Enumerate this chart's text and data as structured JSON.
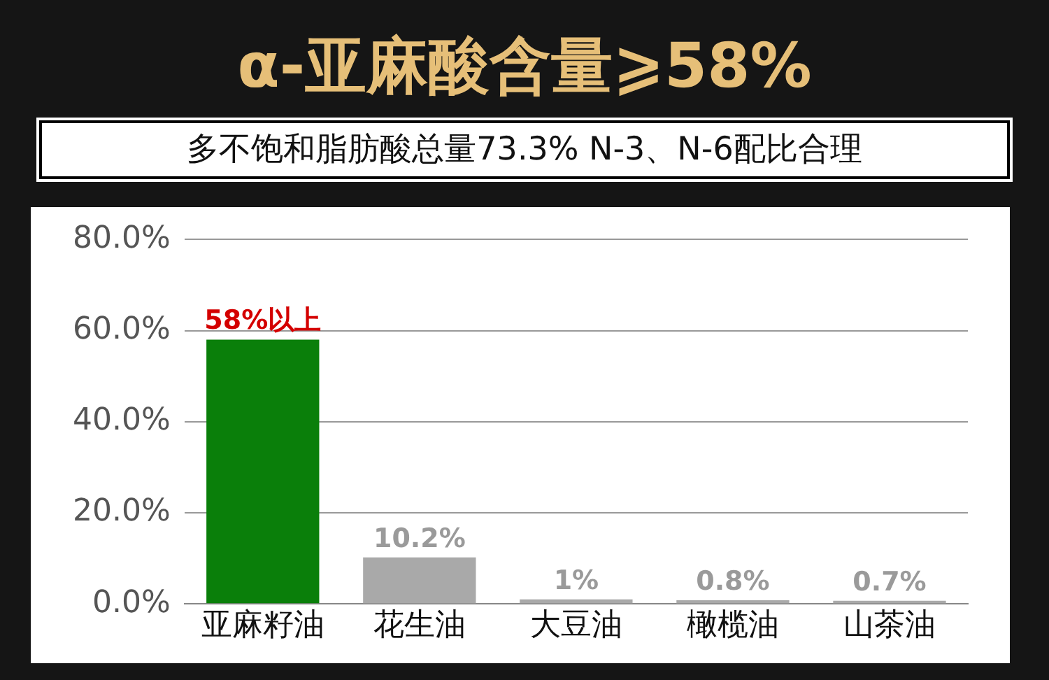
{
  "chart_data": {
    "type": "bar",
    "title": "α-亚麻酸含量⩾58%",
    "subtitle": "多不饱和脂肪酸总量73.3% N-3、N-6配比合理",
    "categories": [
      "亚麻籽油",
      "花生油",
      "大豆油",
      "橄榄油",
      "山茶油"
    ],
    "values": [
      58,
      10.2,
      1,
      0.8,
      0.7
    ],
    "colors": [
      "#0a7f0a",
      "#a9a9a9",
      "#a9a9a9",
      "#a9a9a9",
      "#a9a9a9"
    ],
    "value_labels": [
      "58%以上",
      "10.2%",
      "1%",
      "0.8%",
      "0.7%"
    ],
    "ylim": [
      0,
      80
    ],
    "yticks": [
      {
        "value": 0,
        "label": "0.0%"
      },
      {
        "value": 20,
        "label": "20.0%"
      },
      {
        "value": 40,
        "label": "40.0%"
      },
      {
        "value": 60,
        "label": "60.0%"
      },
      {
        "value": 80,
        "label": "80.0%"
      }
    ],
    "grid": "y"
  }
}
